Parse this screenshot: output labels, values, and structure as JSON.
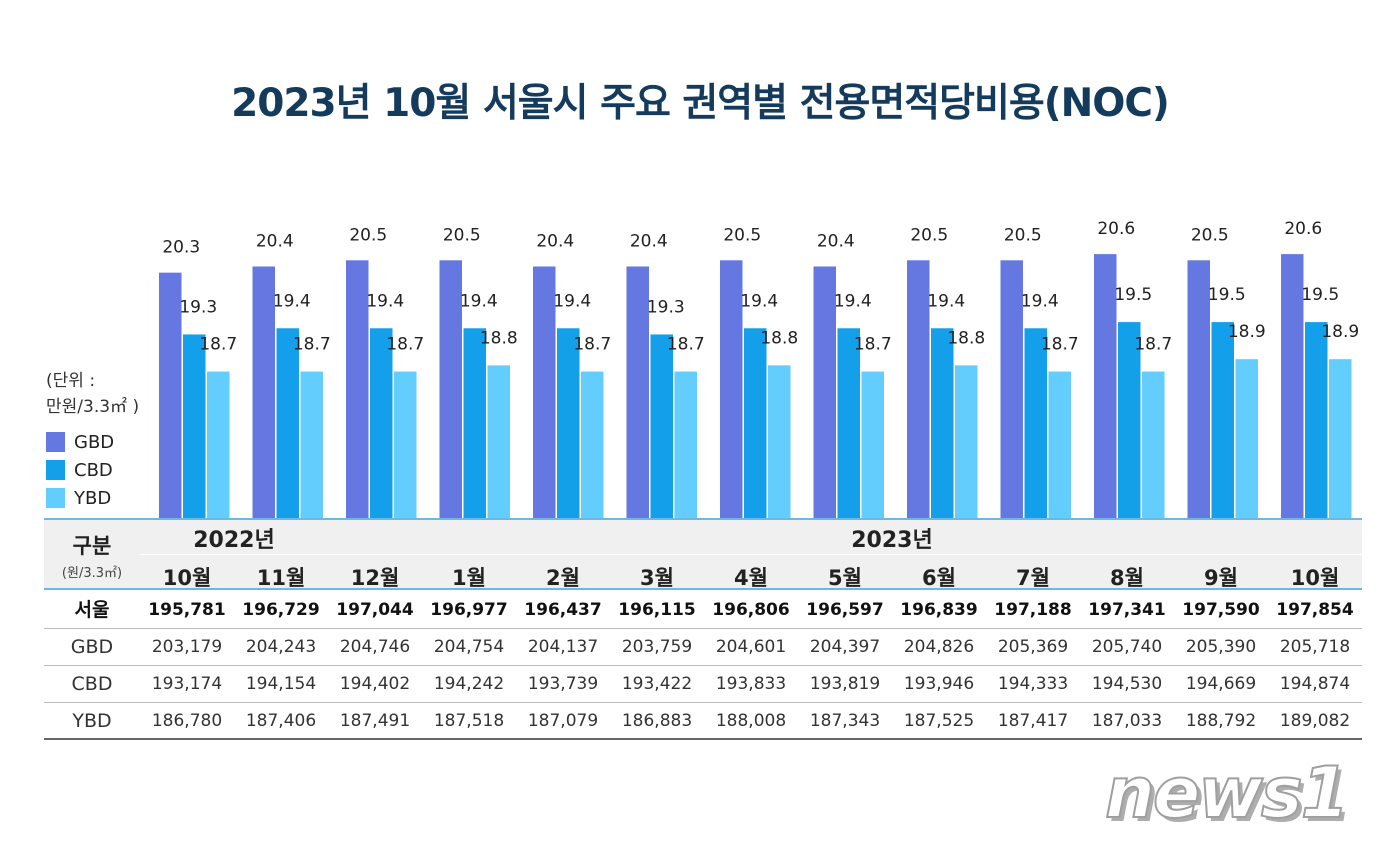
{
  "title": "2023년 10월 서울시 주요 권역별 전용면적당비용(NOC)",
  "unit_label": [
    "(단위 :",
    "만원/3.3㎡ )"
  ],
  "colors": {
    "GBD": "#6577e0",
    "CBD": "#139fe9",
    "YBD": "#63cdfd",
    "title": "#143a5c"
  },
  "chart_data": {
    "type": "bar",
    "categories": [
      "2022년 10월",
      "2022년 11월",
      "2022년 12월",
      "2023년 1월",
      "2023년 2월",
      "2023년 3월",
      "2023년 4월",
      "2023년 5월",
      "2023년 6월",
      "2023년 7월",
      "2023년 8월",
      "2023년 9월",
      "2023년 10월"
    ],
    "series": [
      {
        "name": "GBD",
        "values": [
          20.3,
          20.4,
          20.5,
          20.5,
          20.4,
          20.4,
          20.5,
          20.4,
          20.5,
          20.5,
          20.6,
          20.5,
          20.6
        ]
      },
      {
        "name": "CBD",
        "values": [
          19.3,
          19.4,
          19.4,
          19.4,
          19.4,
          19.3,
          19.4,
          19.4,
          19.4,
          19.4,
          19.5,
          19.5,
          19.5
        ]
      },
      {
        "name": "YBD",
        "values": [
          18.7,
          18.7,
          18.7,
          18.8,
          18.7,
          18.7,
          18.8,
          18.7,
          18.8,
          18.7,
          18.7,
          18.9,
          18.9
        ]
      }
    ],
    "ylabel": "만원/3.3㎡",
    "legend": "left",
    "grid": false
  },
  "table": {
    "header_label": "구분",
    "header_unit": "(원/3.3㎡)",
    "years": [
      {
        "label": "2022년",
        "span": 3
      },
      {
        "label": "2023년",
        "span": 10
      }
    ],
    "months": [
      "10월",
      "11월",
      "12월",
      "1월",
      "2월",
      "3월",
      "4월",
      "5월",
      "6월",
      "7월",
      "8월",
      "9월",
      "10월"
    ],
    "rows": [
      {
        "label": "서울",
        "values": [
          "195,781",
          "196,729",
          "197,044",
          "196,977",
          "196,437",
          "196,115",
          "196,806",
          "196,597",
          "196,839",
          "197,188",
          "197,341",
          "197,590",
          "197,854"
        ]
      },
      {
        "label": "GBD",
        "values": [
          "203,179",
          "204,243",
          "204,746",
          "204,754",
          "204,137",
          "203,759",
          "204,601",
          "204,397",
          "204,826",
          "205,369",
          "205,740",
          "205,390",
          "205,718"
        ]
      },
      {
        "label": "CBD",
        "values": [
          "193,174",
          "194,154",
          "194,402",
          "194,242",
          "193,739",
          "193,422",
          "193,833",
          "193,819",
          "193,946",
          "194,333",
          "194,530",
          "194,669",
          "194,874"
        ]
      },
      {
        "label": "YBD",
        "values": [
          "186,780",
          "187,406",
          "187,491",
          "187,518",
          "187,079",
          "186,883",
          "188,008",
          "187,343",
          "187,525",
          "187,417",
          "187,033",
          "188,792",
          "189,082"
        ]
      }
    ]
  },
  "watermark": "news1"
}
